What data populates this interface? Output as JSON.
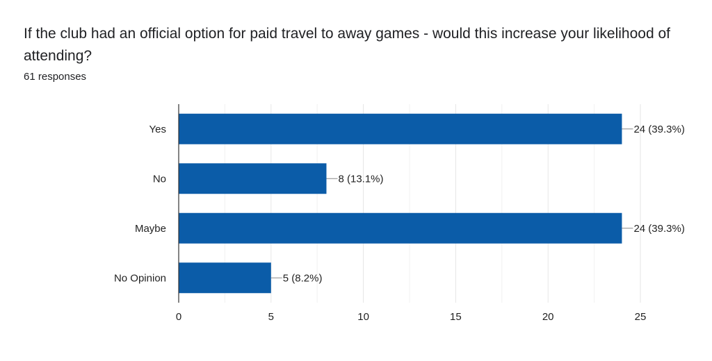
{
  "question": {
    "title": "If the club had an official option for paid travel to away games - would this increase your likelihood of attending?",
    "responses": "61 responses"
  },
  "colors": {
    "bar": "#0b5ca8",
    "axis": "#333333",
    "grid": "#e6e6e6",
    "leader": "#888888"
  },
  "chart_data": {
    "type": "bar",
    "orientation": "horizontal",
    "categories": [
      "Yes",
      "No",
      "Maybe",
      "No Opinion"
    ],
    "values": [
      24,
      8,
      24,
      5
    ],
    "data_labels": [
      "24 (39.3%)",
      "8 (13.1%)",
      "24 (39.3%)",
      "5 (8.2%)"
    ],
    "xlim": [
      0,
      25
    ],
    "xticks": [
      0,
      5,
      10,
      15,
      20,
      25
    ],
    "grid": true,
    "title": "If the club had an official option for paid travel to away games - would this increase your likelihood of attending?",
    "xlabel": "",
    "ylabel": ""
  }
}
